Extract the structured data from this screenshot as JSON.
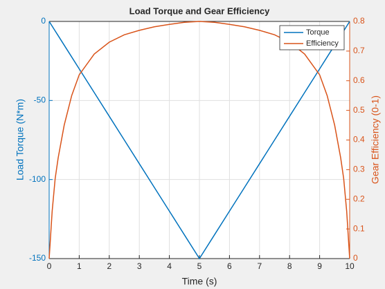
{
  "chart_data": {
    "type": "line",
    "title": "Load Torque and Gear Efficiency",
    "xlabel": "Time (s)",
    "ylabel": "Load Torque (N*m)",
    "y2label": "Gear Efficiency (0-1)",
    "x": [
      0,
      0.1,
      0.2,
      0.3,
      0.5,
      0.75,
      1,
      1.5,
      2,
      2.5,
      3,
      3.5,
      4,
      4.5,
      5,
      5.5,
      6,
      6.5,
      7,
      7.5,
      8,
      8.5,
      9,
      9.25,
      9.5,
      9.7,
      9.8,
      9.9,
      10
    ],
    "series": [
      {
        "name": "Torque",
        "color": "#0072bd",
        "axis": "y",
        "values": [
          0,
          -3,
          -6,
          -9,
          -15,
          -22.5,
          -30,
          -45,
          -60,
          -75,
          -90,
          -105,
          -120,
          -135,
          -150,
          -135,
          -120,
          -105,
          -90,
          -75,
          -60,
          -45,
          -30,
          -22.5,
          -15,
          -9,
          -6,
          -3,
          0
        ]
      },
      {
        "name": "Efficiency",
        "color": "#d95319",
        "axis": "y2",
        "values": [
          0,
          0.16,
          0.27,
          0.34,
          0.45,
          0.55,
          0.62,
          0.69,
          0.73,
          0.755,
          0.77,
          0.782,
          0.79,
          0.797,
          0.8,
          0.797,
          0.79,
          0.782,
          0.77,
          0.755,
          0.73,
          0.69,
          0.62,
          0.55,
          0.45,
          0.34,
          0.27,
          0.16,
          0
        ]
      }
    ],
    "xlim": [
      0,
      10
    ],
    "xticks": [
      0,
      1,
      2,
      3,
      4,
      5,
      6,
      7,
      8,
      9,
      10
    ],
    "ylim": [
      -150,
      0
    ],
    "yticks": [
      -150,
      -100,
      -50,
      0
    ],
    "y2lim": [
      0,
      0.8
    ],
    "y2ticks": [
      0,
      0.1,
      0.2,
      0.3,
      0.4,
      0.5,
      0.6,
      0.7,
      0.8
    ],
    "grid": true,
    "legend": "northeast"
  }
}
